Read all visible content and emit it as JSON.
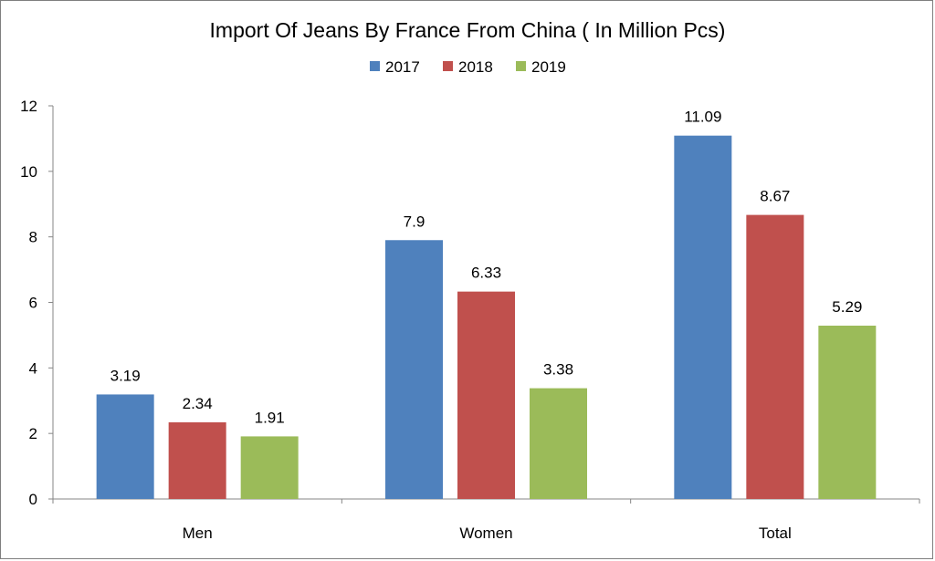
{
  "chart_data": {
    "type": "bar",
    "title": "Import Of Jeans By France From China ( In Million Pcs)",
    "xlabel": "",
    "ylabel": "",
    "categories": [
      "Men",
      "Women",
      "Total"
    ],
    "series": [
      {
        "name": "2017",
        "color": "#4f81bd",
        "values": [
          3.19,
          7.9,
          11.09
        ],
        "labels": [
          "3.19",
          "7.9",
          "11.09"
        ]
      },
      {
        "name": "2018",
        "color": "#c0504d",
        "values": [
          2.34,
          6.33,
          8.67
        ],
        "labels": [
          "2.34",
          "6.33",
          "8.67"
        ]
      },
      {
        "name": "2019",
        "color": "#9bbb59",
        "values": [
          1.91,
          3.38,
          5.29
        ],
        "labels": [
          "1.91",
          "3.38",
          "5.29"
        ]
      }
    ],
    "ylim": [
      0,
      12
    ],
    "yticks": [
      "0",
      "2",
      "4",
      "6",
      "8",
      "10",
      "12"
    ],
    "legend": "top",
    "grid": false
  }
}
